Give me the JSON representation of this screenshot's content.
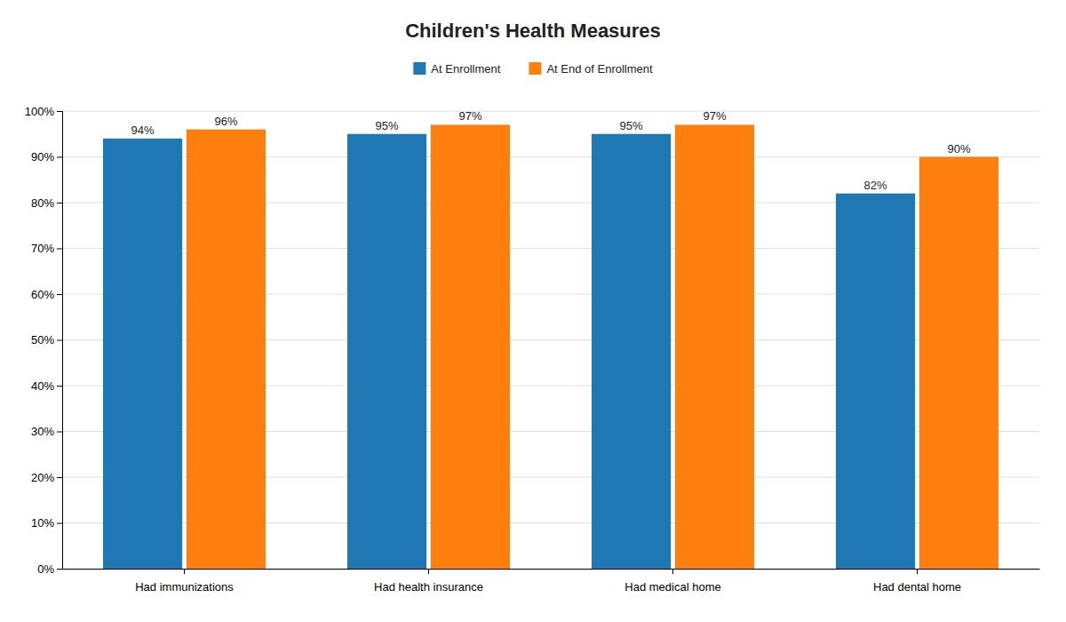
{
  "chart_data": {
    "type": "bar",
    "title": "Children's Health Measures",
    "categories": [
      "Had immunizations",
      "Had health insurance",
      "Had medical home",
      "Had dental home"
    ],
    "series": [
      {
        "name": "At Enrollment",
        "values": [
          94,
          95,
          95,
          82
        ],
        "value_labels": [
          "94%",
          "95%",
          "95%",
          "82%"
        ]
      },
      {
        "name": "At End of Enrollment",
        "values": [
          96,
          97,
          97,
          90
        ],
        "value_labels": [
          "96%",
          "97%",
          "97%",
          "90%"
        ]
      }
    ],
    "ylim": [
      0,
      100
    ],
    "yticks": [
      {
        "value": 0,
        "label": "0%"
      },
      {
        "value": 10,
        "label": "10%"
      },
      {
        "value": 20,
        "label": "20%"
      },
      {
        "value": 30,
        "label": "30%"
      },
      {
        "value": 40,
        "label": "40%"
      },
      {
        "value": 50,
        "label": "50%"
      },
      {
        "value": 60,
        "label": "60%"
      },
      {
        "value": 70,
        "label": "70%"
      },
      {
        "value": 80,
        "label": "80%"
      },
      {
        "value": 90,
        "label": "90%"
      },
      {
        "value": 100,
        "label": "100%"
      }
    ],
    "grid": true,
    "legend": "top",
    "data_labels": true
  }
}
